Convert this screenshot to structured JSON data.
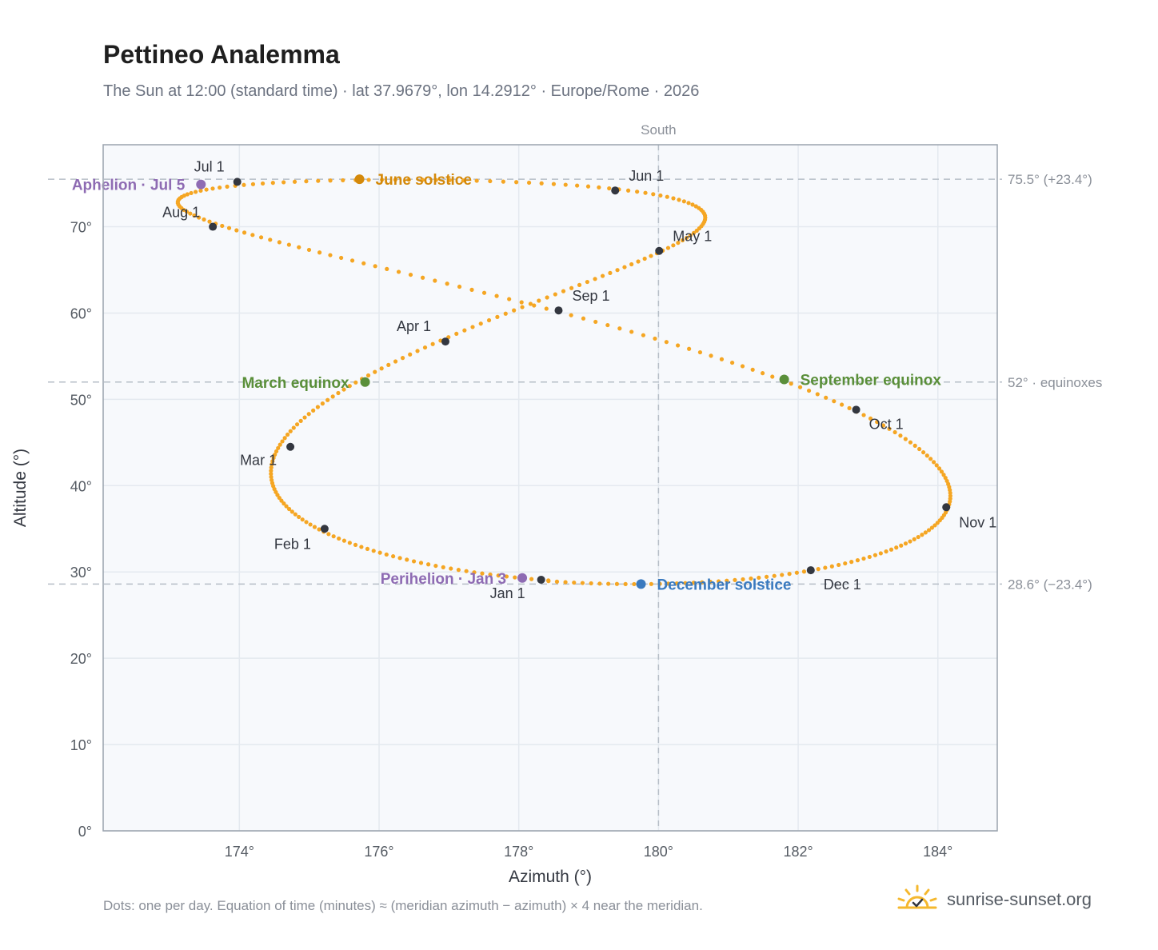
{
  "title": "Pettineo Analemma",
  "subtitle": "The Sun at 12:00 (standard time) · lat 37.9679°, lon 14.2912° · Europe/Rome · 2026",
  "footnote": "Dots: one per day. Equation of time (minutes) ≈ (meridian azimuth − azimuth) × 4 near the meridian.",
  "brand": {
    "text": "sunrise-sunset.org",
    "icon": "sun-logo-icon"
  },
  "colors": {
    "curve": "#f5a623",
    "month_dot": "#333740",
    "june_solstice": "#d4890a",
    "december_solstice": "#3a7abf",
    "equinox": "#5a8f3a",
    "apsis": "#8e6bb3",
    "plot_bg": "#f7f9fc",
    "grid": "#e4e9ef",
    "reference_line": "#b6bec7",
    "axis_text": "#555b63"
  },
  "chart_data": {
    "type": "scatter",
    "title": "Pettineo Analemma",
    "xlabel": "Azimuth (°)",
    "ylabel": "Altitude (°)",
    "xlim": [
      172.05,
      184.85
    ],
    "ylim": [
      0,
      79.5
    ],
    "grid": true,
    "x_ticks": [
      "174°",
      "176°",
      "178°",
      "180°",
      "182°",
      "184°"
    ],
    "x_tick_values": [
      174,
      176,
      178,
      180,
      182,
      184
    ],
    "y_ticks": [
      "0°",
      "10°",
      "20°",
      "30°",
      "40°",
      "50°",
      "60°",
      "70°"
    ],
    "y_tick_values": [
      0,
      10,
      20,
      30,
      40,
      50,
      60,
      70
    ],
    "meridian": {
      "azimuth": 180,
      "label": "South"
    },
    "reference_lines": [
      {
        "altitude": 75.5,
        "label": "75.5° (+23.4°)"
      },
      {
        "altitude": 52,
        "label": "52° · equinoxes"
      },
      {
        "altitude": 28.6,
        "label": "28.6° (−23.4°)"
      }
    ],
    "month_markers": [
      {
        "label": "Jan 1",
        "azimuth": 178.32,
        "altitude": 29.1
      },
      {
        "label": "Feb 1",
        "azimuth": 175.22,
        "altitude": 35.0
      },
      {
        "label": "Mar 1",
        "azimuth": 174.73,
        "altitude": 44.5
      },
      {
        "label": "Apr 1",
        "azimuth": 176.95,
        "altitude": 56.7
      },
      {
        "label": "May 1",
        "azimuth": 180.01,
        "altitude": 67.2
      },
      {
        "label": "Jun 1",
        "azimuth": 179.38,
        "altitude": 74.2
      },
      {
        "label": "Jul 1",
        "azimuth": 173.97,
        "altitude": 75.2
      },
      {
        "label": "Aug 1",
        "azimuth": 173.62,
        "altitude": 70.0
      },
      {
        "label": "Sep 1",
        "azimuth": 178.57,
        "altitude": 60.3
      },
      {
        "label": "Oct 1",
        "azimuth": 182.83,
        "altitude": 48.8
      },
      {
        "label": "Nov 1",
        "azimuth": 184.12,
        "altitude": 37.5
      },
      {
        "label": "Dec 1",
        "azimuth": 182.18,
        "altitude": 30.2
      }
    ],
    "events": [
      {
        "label": "June solstice",
        "azimuth": 175.72,
        "altitude": 75.5,
        "kind": "june_solstice"
      },
      {
        "label": "December solstice",
        "azimuth": 179.75,
        "altitude": 28.6,
        "kind": "december_solstice"
      },
      {
        "label": "March equinox",
        "azimuth": 175.8,
        "altitude": 52.0,
        "kind": "equinox"
      },
      {
        "label": "September equinox",
        "azimuth": 181.8,
        "altitude": 52.3,
        "kind": "equinox"
      },
      {
        "label": "Perihelion · Jan 3",
        "azimuth": 178.05,
        "altitude": 29.3,
        "kind": "apsis"
      },
      {
        "label": "Aphelion · Jul 5",
        "azimuth": 173.45,
        "altitude": 74.9,
        "kind": "apsis"
      }
    ],
    "daily_points": "one per day"
  }
}
